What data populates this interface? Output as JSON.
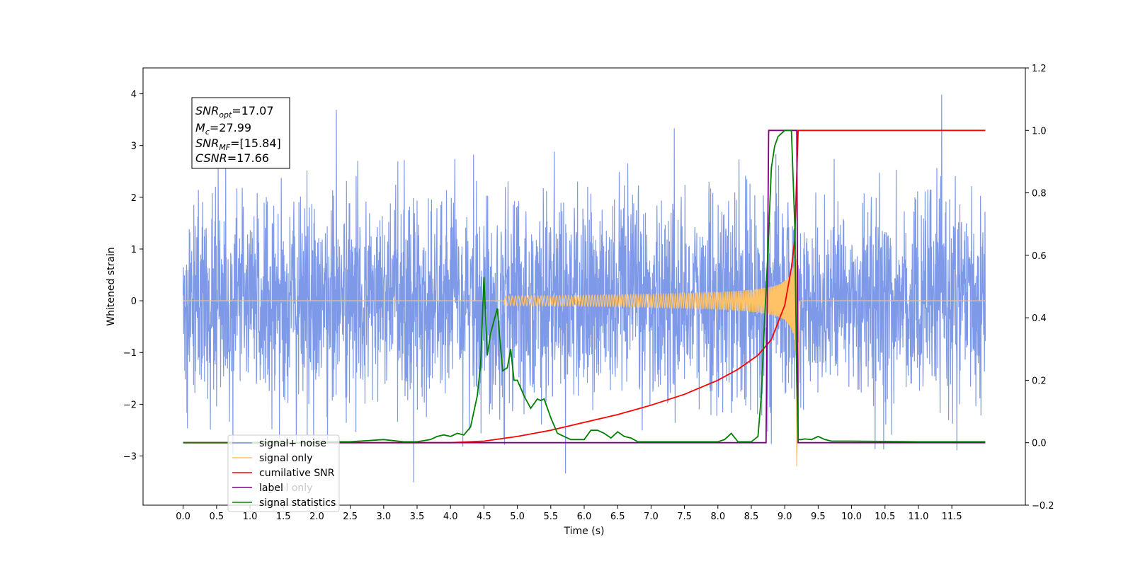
{
  "chart_data": {
    "type": "line",
    "xlabel": "Time (s)",
    "ylabel": "Whitened strain",
    "xlim": [
      -0.6,
      12.6
    ],
    "ylim_left": [
      -3.95,
      4.5
    ],
    "ylim_right": [
      -0.2,
      1.2
    ],
    "xticks": [
      "0.0",
      "0.5",
      "1.0",
      "1.5",
      "2.0",
      "2.5",
      "3.0",
      "3.5",
      "4.0",
      "4.5",
      "5.0",
      "5.5",
      "6.0",
      "6.5",
      "7.0",
      "7.5",
      "8.0",
      "8.5",
      "9.0",
      "9.5",
      "10.0",
      "10.5",
      "11.0",
      "11.5"
    ],
    "yticks_left": [
      "−3",
      "−2",
      "−1",
      "0",
      "1",
      "2",
      "3",
      "4"
    ],
    "yticks_right": [
      "−0.2",
      "0.0",
      "0.2",
      "0.4",
      "0.6",
      "0.8",
      "1.0",
      "1.2"
    ],
    "annotation": {
      "snr_opt": {
        "label": "SNR",
        "sub": "opt",
        "value": "=17.07"
      },
      "mc": {
        "label": "M",
        "sub": "c",
        "value": "=27.99"
      },
      "snr_mf": {
        "label": "SNR",
        "sub": "MF",
        "value": "=[15.84]"
      },
      "csnr": {
        "label": "CSNR",
        "sub": "",
        "value": "=17.66"
      }
    },
    "legend": {
      "placement": "lower-left",
      "entries": [
        {
          "name": "signal+ noise",
          "color": "#7793e6"
        },
        {
          "name": "signal only",
          "color": "#ffc266"
        },
        {
          "name": "cumilative SNR",
          "color": "#ff0000"
        },
        {
          "name": "label",
          "color": "#800080"
        },
        {
          "name": "signal statistics",
          "color": "#008000"
        }
      ]
    },
    "hidden_legend_label": "signal only",
    "series": [
      {
        "name": "signal+ noise",
        "axis": "left",
        "color": "#7793e6",
        "description_values": {
          "x_range": [
            0,
            12
          ],
          "typical_amplitude": 1.5,
          "min": -3.55,
          "max": 4.1
        }
      },
      {
        "name": "signal only",
        "axis": "left",
        "color": "#ffc266",
        "chirp": {
          "t_start": 4.8,
          "t_merge": 9.18,
          "peak_amplitude": 3.45,
          "trough": -3.2
        }
      },
      {
        "name": "cumilative SNR",
        "axis": "right",
        "x": [
          0,
          4.0,
          4.5,
          5.0,
          5.5,
          6.0,
          6.5,
          7.0,
          7.5,
          8.0,
          8.3,
          8.6,
          8.8,
          9.0,
          9.1,
          9.15,
          9.2,
          12.0
        ],
        "y": [
          0,
          0,
          0.005,
          0.02,
          0.04,
          0.065,
          0.09,
          0.12,
          0.155,
          0.2,
          0.235,
          0.28,
          0.33,
          0.44,
          0.56,
          0.65,
          1.0,
          1.0
        ]
      },
      {
        "name": "label",
        "axis": "right",
        "x": [
          0,
          8.72,
          8.76,
          9.18,
          9.2,
          12.0
        ],
        "y": [
          0,
          0,
          1.0,
          1.0,
          0,
          0
        ]
      },
      {
        "name": "signal statistics",
        "axis": "right",
        "x": [
          0,
          0.5,
          1.0,
          1.5,
          2.0,
          2.2,
          2.5,
          3.0,
          3.3,
          3.5,
          3.7,
          3.8,
          3.9,
          4.0,
          4.1,
          4.2,
          4.3,
          4.4,
          4.45,
          4.5,
          4.55,
          4.6,
          4.7,
          4.78,
          4.85,
          4.9,
          4.95,
          5.0,
          5.1,
          5.2,
          5.3,
          5.35,
          5.4,
          5.5,
          5.6,
          5.7,
          5.8,
          6.0,
          6.1,
          6.2,
          6.3,
          6.4,
          6.5,
          6.6,
          6.7,
          6.8,
          7.0,
          7.5,
          8.0,
          8.1,
          8.2,
          8.3,
          8.5,
          8.6,
          8.65,
          8.7,
          8.75,
          8.8,
          8.85,
          8.9,
          9.0,
          9.1,
          9.15,
          9.18,
          9.2,
          9.25,
          9.3,
          9.4,
          9.5,
          9.6,
          9.7,
          10.0,
          11.0,
          12.0
        ],
        "y": [
          0,
          0,
          0,
          0,
          0,
          0.003,
          0.003,
          0.01,
          0.003,
          0.003,
          0.01,
          0.02,
          0.025,
          0.02,
          0.03,
          0.025,
          0.05,
          0.15,
          0.25,
          0.53,
          0.28,
          0.35,
          0.43,
          0.23,
          0.24,
          0.3,
          0.2,
          0.2,
          0.15,
          0.11,
          0.14,
          0.135,
          0.14,
          0.08,
          0.03,
          0.02,
          0.01,
          0.01,
          0.04,
          0.04,
          0.03,
          0.015,
          0.035,
          0.02,
          0.015,
          0.003,
          0.003,
          0.003,
          0.003,
          0.01,
          0.03,
          0.003,
          0.003,
          0.02,
          0.15,
          0.4,
          0.62,
          0.88,
          0.95,
          0.98,
          1.0,
          1.0,
          0.7,
          0.2,
          0.01,
          0.01,
          0.012,
          0.01,
          0.02,
          0.01,
          0.005,
          0.005,
          0.003,
          0.003
        ]
      }
    ]
  }
}
